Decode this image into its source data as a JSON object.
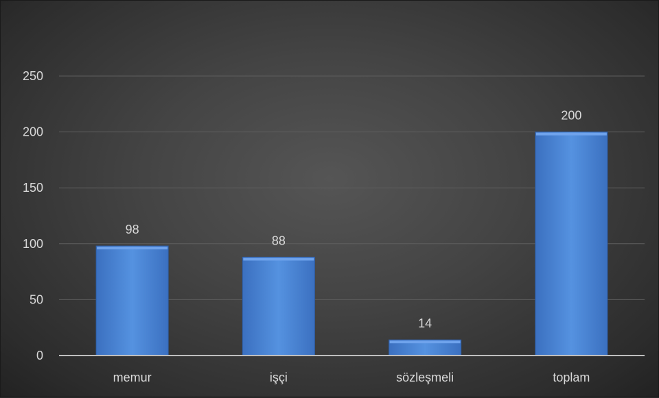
{
  "chart_data": {
    "type": "bar",
    "title": "",
    "xlabel": "",
    "ylabel": "",
    "categories": [
      "memur",
      "işçi",
      "sözleşmeli",
      "toplam"
    ],
    "values": [
      98,
      88,
      14,
      200
    ],
    "ylim": [
      0,
      250
    ],
    "yticks": [
      0,
      50,
      100,
      150,
      200,
      250
    ],
    "grid": true,
    "legend": "none",
    "data_labels": true,
    "colors": {
      "bar": "#4a86d8",
      "bar_light": "#6fa3ec",
      "bar_dark": "#2f5fa8",
      "gridline": "#5e5e5e",
      "axis": "#bfbfbf",
      "text": "#d9d9d9"
    }
  }
}
